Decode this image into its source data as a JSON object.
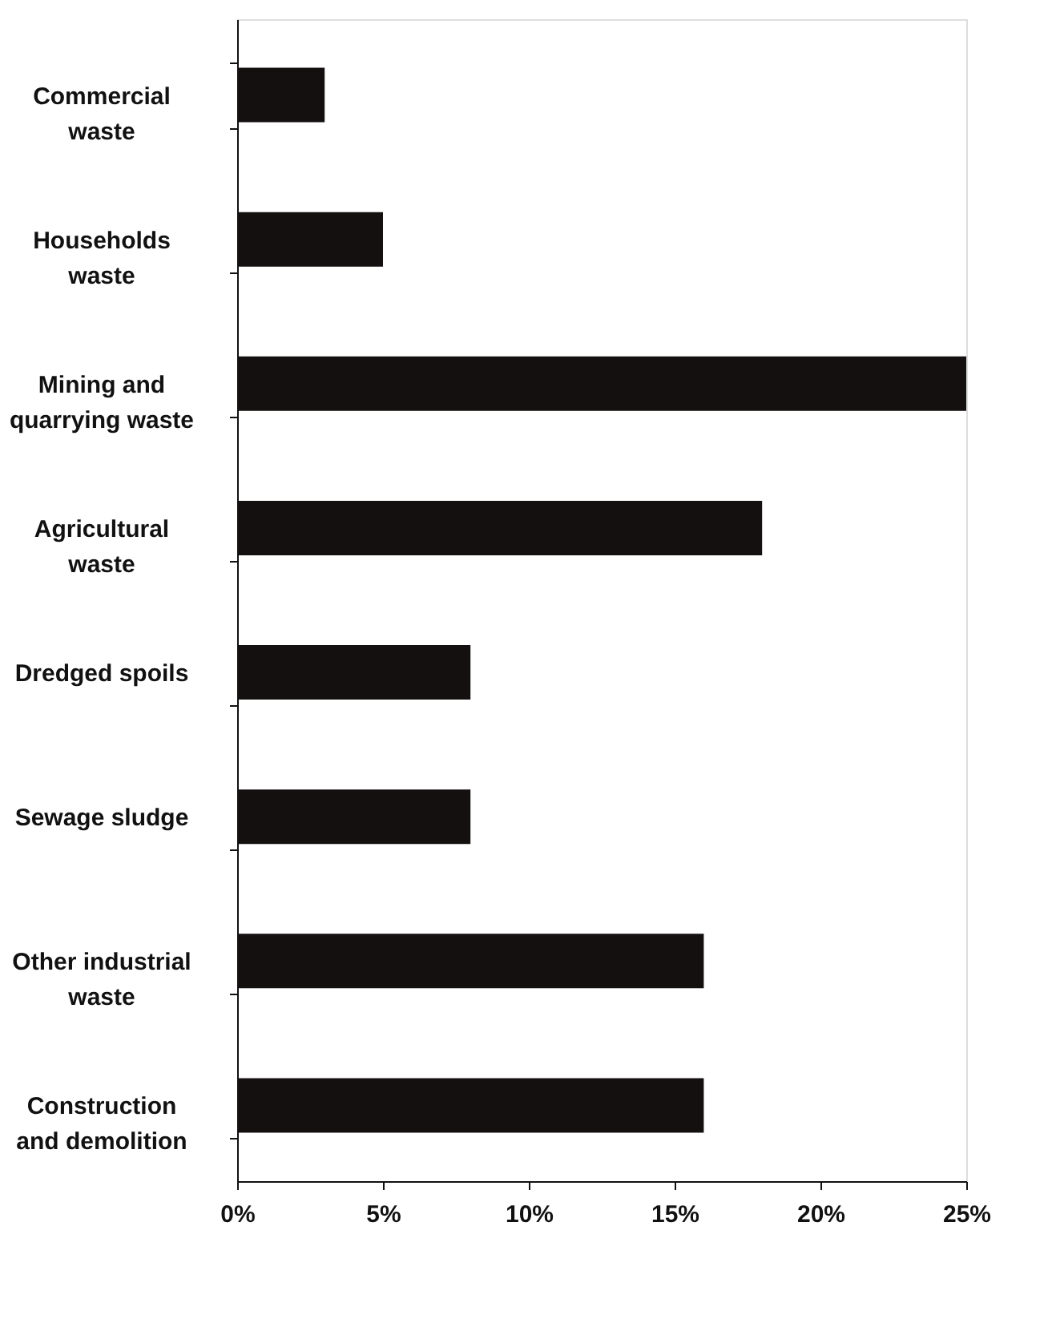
{
  "chart_data": {
    "type": "bar",
    "orientation": "horizontal",
    "categories": [
      "Commercial\nwaste",
      "Households\nwaste",
      "Mining and\nquarrying waste",
      "Agricultural\nwaste",
      "Dredged spoils",
      "Sewage sludge",
      "Other industrial\nwaste",
      "Construction\nand demolition"
    ],
    "values": [
      3,
      5,
      25,
      18,
      8,
      8,
      16,
      16
    ],
    "color": "#141010",
    "xlim": [
      0,
      25
    ],
    "xticks": [
      {
        "value": 0,
        "label": "0%"
      },
      {
        "value": 5,
        "label": "5%"
      },
      {
        "value": 10,
        "label": "10%"
      },
      {
        "value": 15,
        "label": "15%"
      },
      {
        "value": 20,
        "label": "20%"
      },
      {
        "value": 25,
        "label": "25%"
      }
    ],
    "grid": false
  }
}
